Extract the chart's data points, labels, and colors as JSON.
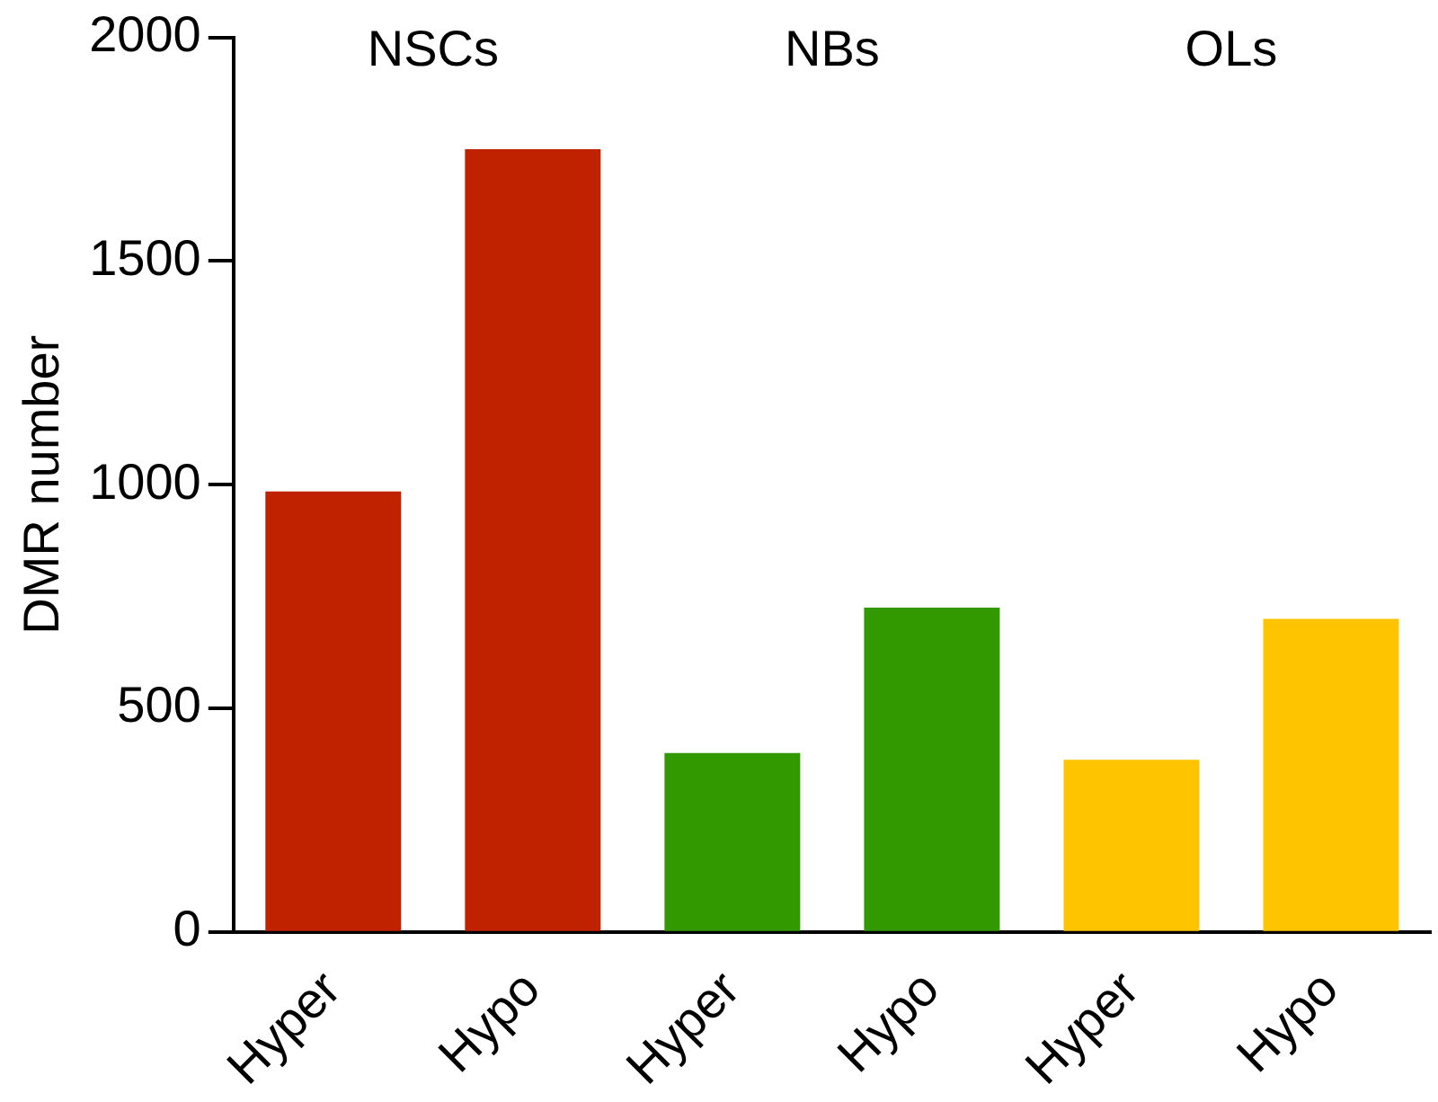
{
  "chart_data": {
    "type": "bar",
    "ylabel": "DMR number",
    "categories": [
      "Hyper",
      "Hypo",
      "Hyper",
      "Hypo",
      "Hyper",
      "Hypo"
    ],
    "values": [
      985,
      1750,
      400,
      725,
      385,
      700
    ],
    "colors": [
      "#c02200",
      "#c02200",
      "#339900",
      "#339900",
      "#ffc400",
      "#ffc400"
    ],
    "ylim": [
      0,
      2000
    ],
    "yticks": [
      0,
      500,
      1000,
      1500,
      2000
    ],
    "grid": false,
    "legend": false,
    "annotations": [
      "NSCs",
      "NBs",
      "OLs"
    ]
  }
}
